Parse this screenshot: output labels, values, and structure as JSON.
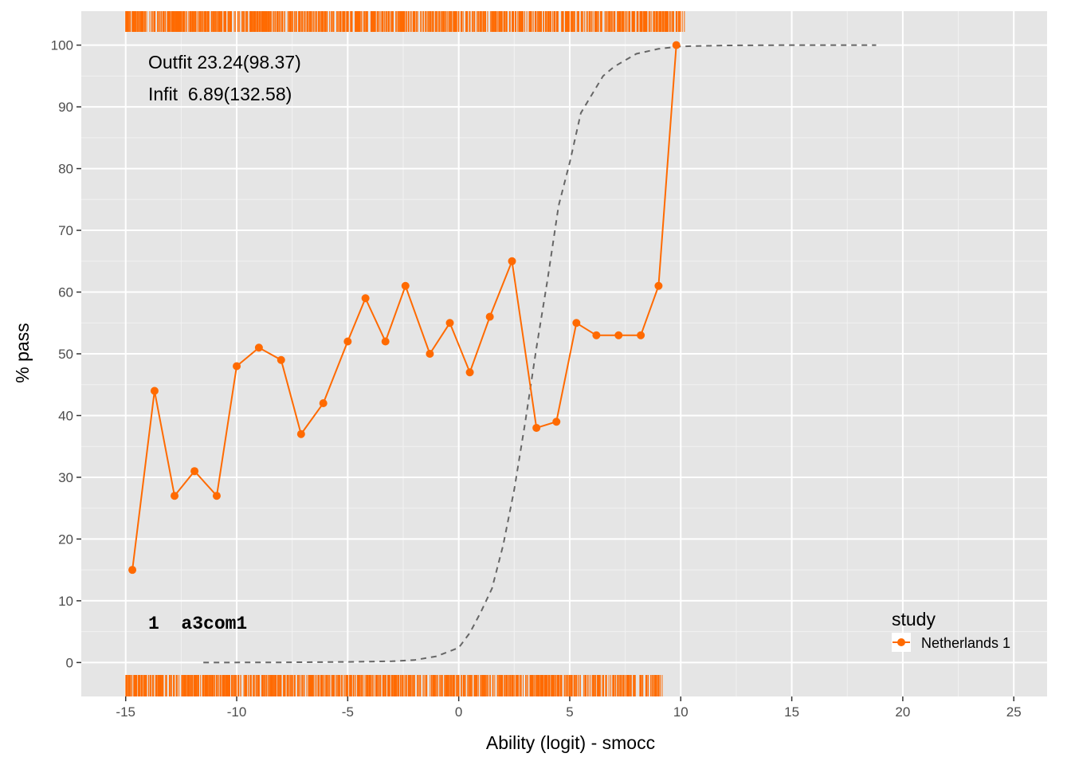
{
  "chart_data": {
    "type": "line",
    "xlabel": "Ability (logit) - smocc",
    "ylabel": "% pass",
    "xlim": [
      -17,
      26.5
    ],
    "ylim": [
      -5.5,
      105.5
    ],
    "x_ticks": [
      -15,
      -10,
      -5,
      0,
      5,
      10,
      15,
      20,
      25
    ],
    "y_ticks": [
      0,
      10,
      20,
      30,
      40,
      50,
      60,
      70,
      80,
      90,
      100
    ],
    "grid": true,
    "background": "#e5e5e5",
    "annotations": {
      "outfit": "Outfit 23.24(98.37)",
      "infit": "Infit  6.89(132.58)",
      "item": "1  a3com1"
    },
    "legend": {
      "title": "study",
      "position": "bottom-right",
      "entries": [
        {
          "label": "Netherlands 1",
          "color": "#ff6a00"
        }
      ]
    },
    "series": [
      {
        "name": "Netherlands 1",
        "color": "#ff6a00",
        "x": [
          -14.7,
          -13.7,
          -12.8,
          -11.9,
          -10.9,
          -10.0,
          -9.0,
          -8.0,
          -7.1,
          -6.1,
          -5.0,
          -4.2,
          -3.3,
          -2.4,
          -1.3,
          -0.4,
          0.5,
          1.4,
          2.4,
          3.5,
          4.4,
          5.3,
          6.2,
          7.2,
          8.2,
          9.0,
          9.8
        ],
        "values": [
          15,
          44,
          27,
          31,
          27,
          48,
          51,
          49,
          37,
          42,
          52,
          59,
          52,
          61,
          50,
          55,
          47,
          56,
          65,
          38,
          39,
          55,
          53,
          53,
          53,
          61,
          100
        ]
      }
    ],
    "model_curve": {
      "color": "#666666",
      "style": "dashed",
      "x": [
        -11.5,
        -8,
        -5,
        -3,
        -2,
        -1,
        0,
        0.5,
        1,
        1.5,
        2,
        2.5,
        3,
        3.5,
        4,
        4.5,
        5,
        5.5,
        6,
        6.5,
        7,
        8,
        9,
        10,
        12,
        15,
        18.8
      ],
      "values": [
        0,
        0.03,
        0.1,
        0.2,
        0.4,
        1.0,
        2.4,
        4.8,
        8.2,
        12,
        19,
        28,
        39,
        51,
        62,
        74,
        81,
        89,
        92,
        95,
        96.5,
        98.6,
        99.4,
        99.8,
        99.95,
        100,
        100
      ]
    },
    "rug": {
      "color": "#ff6a00",
      "top_range": [
        -15,
        10.2
      ],
      "bottom_range": [
        -15,
        9.2
      ]
    }
  }
}
